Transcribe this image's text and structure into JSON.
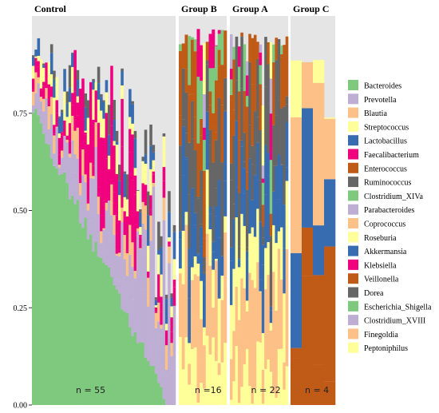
{
  "chart_data": {
    "type": "bar",
    "stacked": true,
    "ylim": [
      0,
      1
    ],
    "yticks": [
      "0.00",
      "0.25",
      "0.50",
      "0.75"
    ],
    "grid": false,
    "legend_position": "right",
    "panels": [
      {
        "title": "Control",
        "n_label": "n = 55",
        "bars": 55,
        "background": "#e5e5e5"
      },
      {
        "title": "Group B",
        "n_label": "n =16",
        "bars": 16,
        "background": "#e5e5e5"
      },
      {
        "title": "Group A",
        "n_label": "n = 22",
        "bars": 22,
        "background": "#e5e5e5"
      },
      {
        "title": "Group C",
        "n_label": "n = 4",
        "bars": 4,
        "background": "#e5e5e5"
      }
    ],
    "legend": [
      {
        "name": "Bacteroides",
        "color": "#7fc97f"
      },
      {
        "name": "Prevotella",
        "color": "#beaed4"
      },
      {
        "name": "Blautia",
        "color": "#fdc086"
      },
      {
        "name": "Streptococcus",
        "color": "#ffff99"
      },
      {
        "name": "Lactobacillus",
        "color": "#386cb0"
      },
      {
        "name": "Faecalibacterium",
        "color": "#f0027f"
      },
      {
        "name": "Enterococcus",
        "color": "#bf5b17"
      },
      {
        "name": "Ruminococcus",
        "color": "#666666"
      },
      {
        "name": "Clostridium_XIVa",
        "color": "#7fc97f"
      },
      {
        "name": "Parabacteroides",
        "color": "#beaed4"
      },
      {
        "name": "Coprococcus",
        "color": "#fdc086"
      },
      {
        "name": "Roseburia",
        "color": "#ffff99"
      },
      {
        "name": "Akkermansia",
        "color": "#386cb0"
      },
      {
        "name": "Klebsiella",
        "color": "#f0027f"
      },
      {
        "name": "Veillonella",
        "color": "#bf5b17"
      },
      {
        "name": "Dorea",
        "color": "#666666"
      },
      {
        "name": "Escherichia_Shigella",
        "color": "#7fc97f"
      },
      {
        "name": "Clostridium_XVIII",
        "color": "#beaed4"
      },
      {
        "name": "Finegoldia",
        "color": "#fdc086"
      },
      {
        "name": "Peptoniphilus",
        "color": "#ffff99"
      }
    ]
  }
}
